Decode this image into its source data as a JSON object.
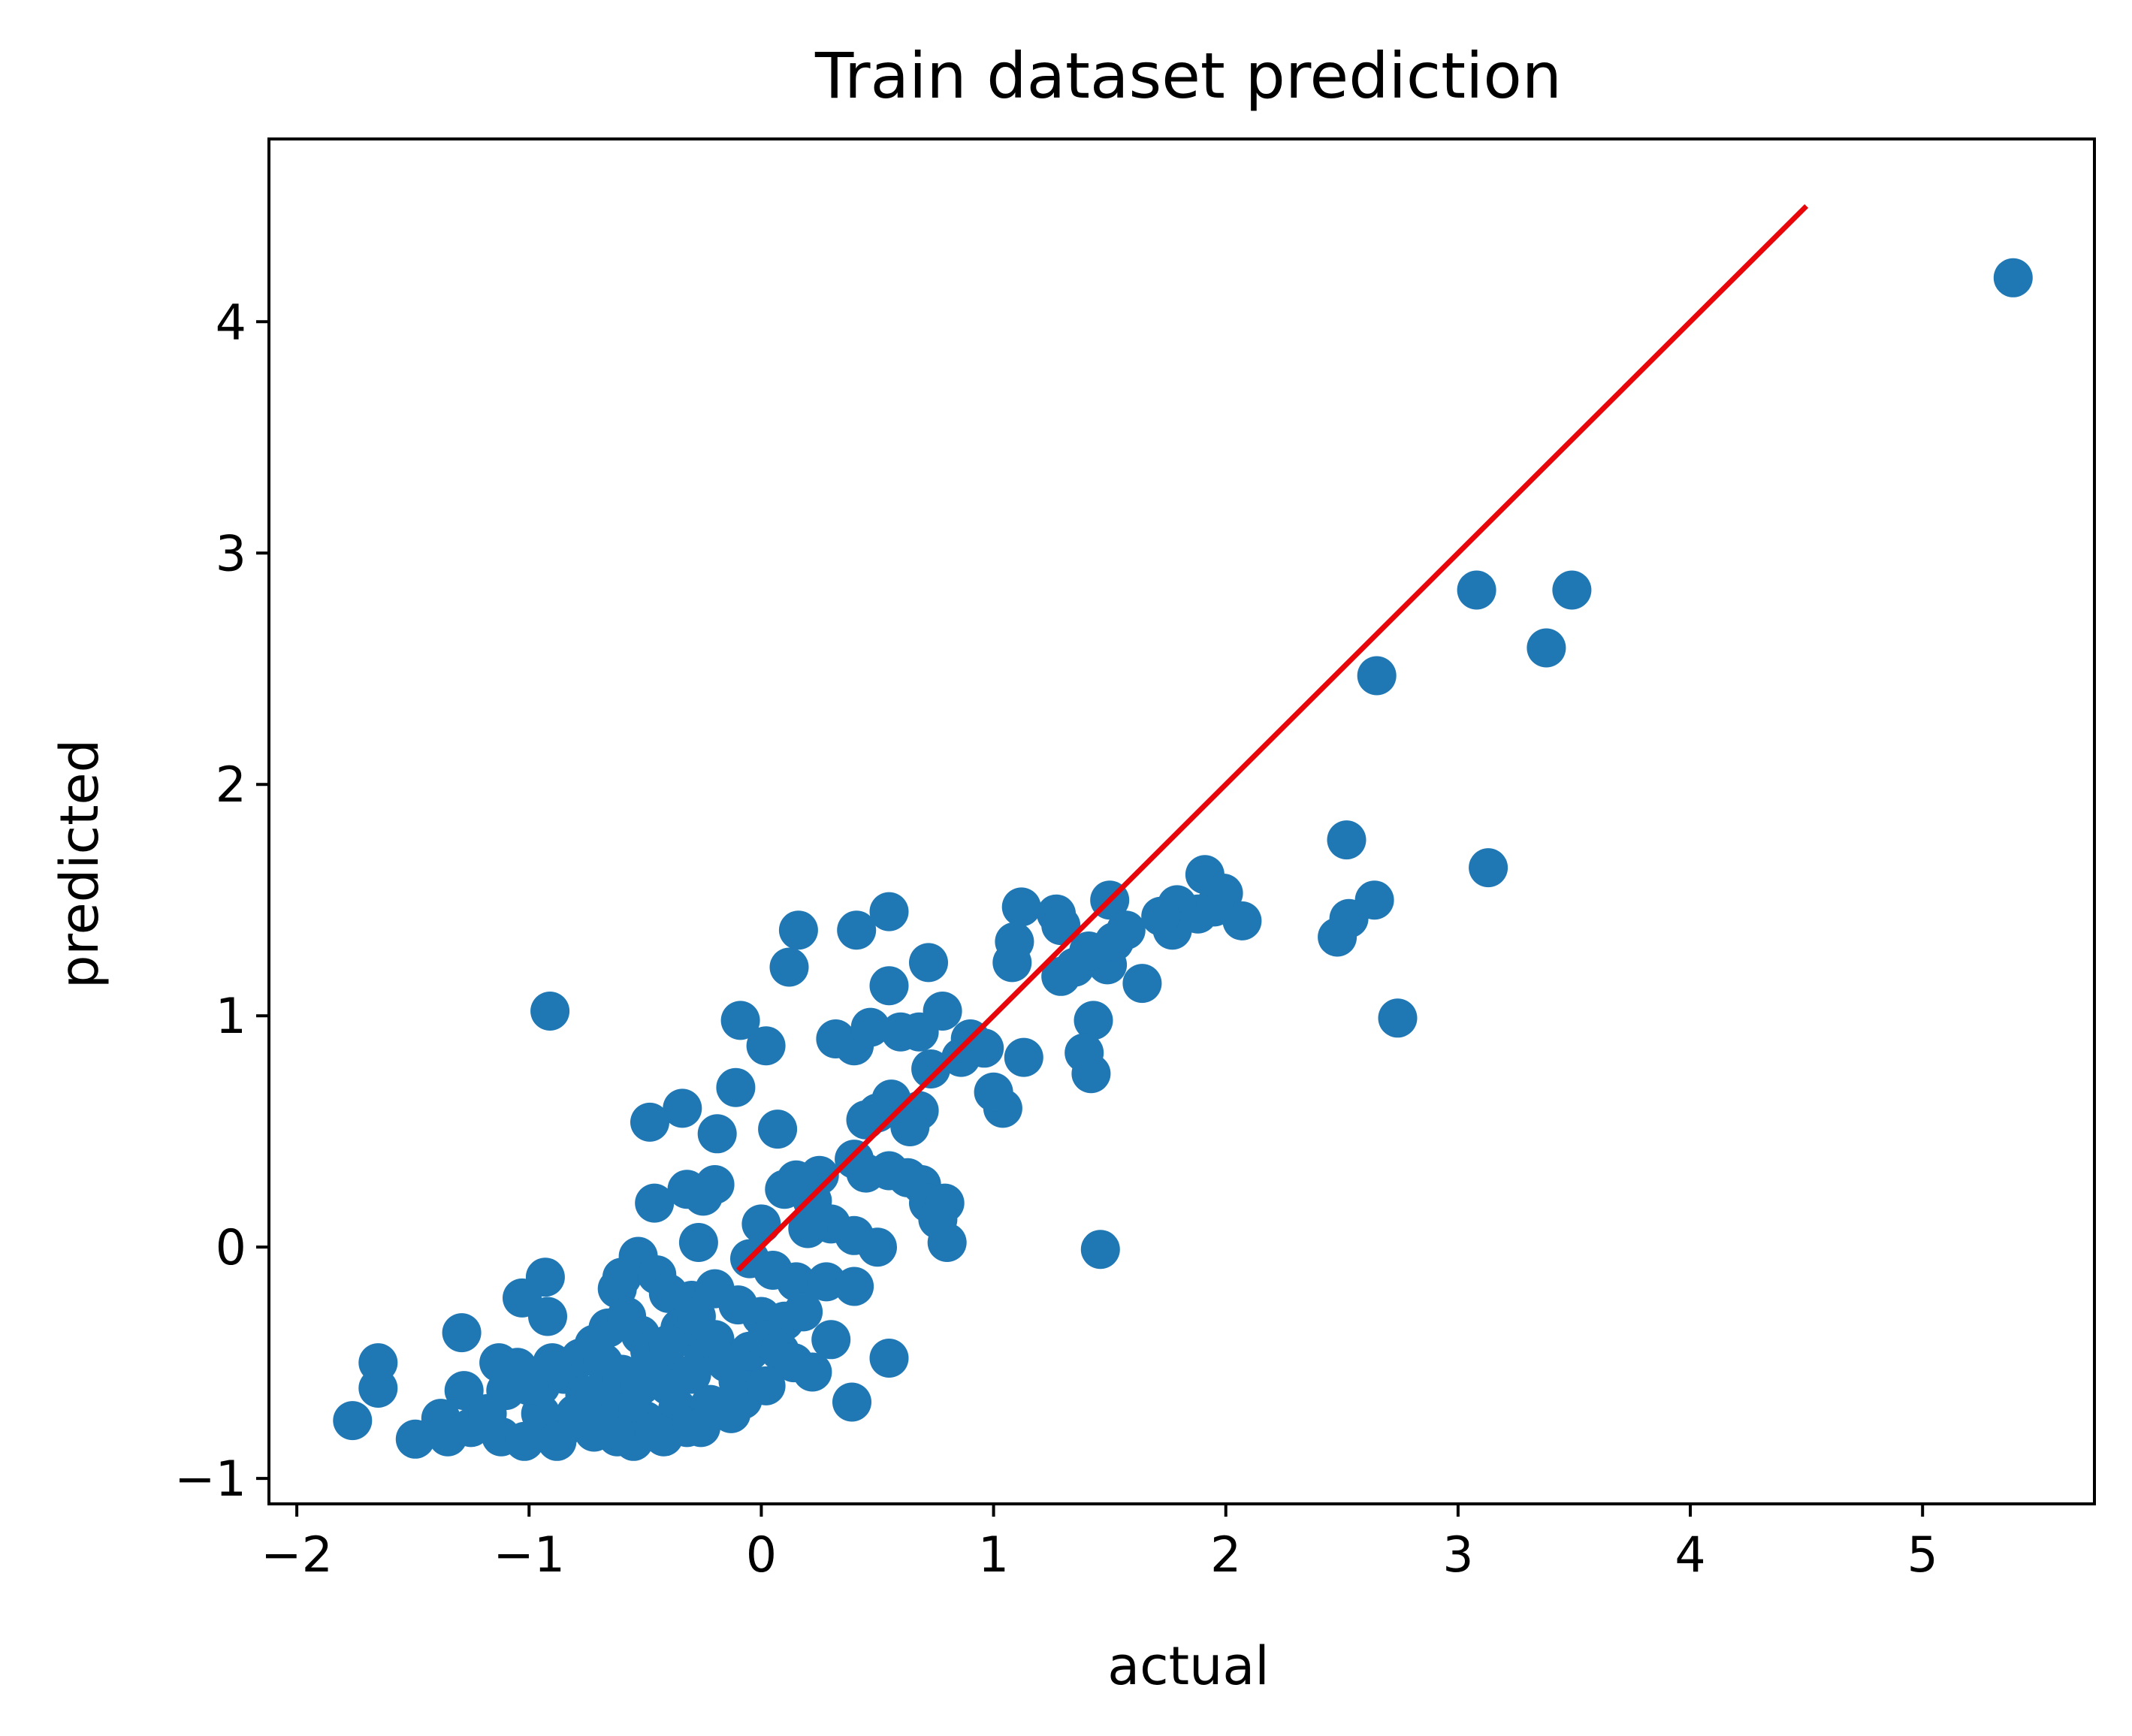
{
  "chart_data": {
    "type": "scatter",
    "title": "Train dataset prediction",
    "xlabel": "actual",
    "ylabel": "predicted",
    "xlim": [
      -2.12,
      5.74
    ],
    "ylim": [
      -1.11,
      4.79
    ],
    "xticks": [
      {
        "value": -2,
        "label": "−2"
      },
      {
        "value": -1,
        "label": "−1"
      },
      {
        "value": 0,
        "label": "0"
      },
      {
        "value": 1,
        "label": "1"
      },
      {
        "value": 2,
        "label": "2"
      },
      {
        "value": 3,
        "label": "3"
      },
      {
        "value": 4,
        "label": "4"
      },
      {
        "value": 5,
        "label": "5"
      }
    ],
    "yticks": [
      {
        "value": -1,
        "label": "−1"
      },
      {
        "value": 0,
        "label": "0"
      },
      {
        "value": 1,
        "label": "1"
      },
      {
        "value": 2,
        "label": "2"
      },
      {
        "value": 3,
        "label": "3"
      },
      {
        "value": 4,
        "label": "4"
      }
    ],
    "grid": false,
    "colors": {
      "points": "#1f77b4",
      "line": "#e8060a"
    },
    "reference_line": {
      "x": [
        -0.1,
        4.5
      ],
      "y": [
        -0.1,
        4.5
      ]
    },
    "series": [
      {
        "points": [
          [
            5.39,
            4.19
          ],
          [
            3.08,
            2.84
          ],
          [
            3.49,
            2.84
          ],
          [
            3.38,
            2.59
          ],
          [
            2.65,
            2.47
          ],
          [
            2.52,
            1.76
          ],
          [
            3.13,
            1.64
          ],
          [
            2.64,
            1.5
          ],
          [
            2.53,
            1.42
          ],
          [
            2.48,
            1.34
          ],
          [
            2.74,
            0.99
          ],
          [
            1.91,
            1.61
          ],
          [
            1.99,
            1.53
          ],
          [
            2.07,
            1.41
          ],
          [
            1.95,
            1.47
          ],
          [
            1.88,
            1.44
          ],
          [
            1.79,
            1.48
          ],
          [
            1.77,
            1.37
          ],
          [
            1.72,
            1.43
          ],
          [
            1.64,
            1.14
          ],
          [
            1.5,
            1.5
          ],
          [
            1.49,
            1.22
          ],
          [
            1.45,
            1.25
          ],
          [
            1.52,
            1.32
          ],
          [
            1.57,
            1.37
          ],
          [
            1.43,
            0.98
          ],
          [
            1.42,
            0.75
          ],
          [
            1.39,
            0.84
          ],
          [
            1.12,
            1.47
          ],
          [
            1.27,
            1.44
          ],
          [
            1.29,
            1.39
          ],
          [
            1.09,
            1.32
          ],
          [
            1.08,
            1.23
          ],
          [
            1.29,
            1.17
          ],
          [
            1.35,
            1.21
          ],
          [
            1.41,
            1.28
          ],
          [
            1.13,
            0.82
          ],
          [
            1.04,
            0.6
          ],
          [
            1.0,
            0.67
          ],
          [
            0.55,
            1.45
          ],
          [
            0.16,
            1.37
          ],
          [
            0.41,
            1.37
          ],
          [
            0.72,
            1.23
          ],
          [
            0.12,
            1.21
          ],
          [
            0.55,
            1.13
          ],
          [
            -0.09,
            0.98
          ],
          [
            0.02,
            0.87
          ],
          [
            -0.11,
            0.69
          ],
          [
            0.07,
            0.51
          ],
          [
            -0.19,
            0.49
          ],
          [
            0.32,
            0.9
          ],
          [
            0.4,
            0.87
          ],
          [
            0.47,
            0.95
          ],
          [
            0.6,
            0.93
          ],
          [
            0.68,
            0.93
          ],
          [
            0.78,
            1.02
          ],
          [
            0.9,
            0.9
          ],
          [
            0.86,
            0.82
          ],
          [
            0.96,
            0.86
          ],
          [
            0.73,
            0.77
          ],
          [
            0.56,
            0.64
          ],
          [
            0.5,
            0.58
          ],
          [
            0.68,
            0.59
          ],
          [
            0.64,
            0.52
          ],
          [
            0.45,
            0.55
          ],
          [
            -0.34,
            0.6
          ],
          [
            -0.48,
            0.54
          ],
          [
            -0.91,
            1.02
          ],
          [
            -0.46,
            0.19
          ],
          [
            -0.32,
            0.25
          ],
          [
            -0.2,
            0.27
          ],
          [
            -0.25,
            0.22
          ],
          [
            -0.27,
            0.02
          ],
          [
            0.1,
            0.25
          ],
          [
            0.15,
            0.29
          ],
          [
            0.25,
            0.31
          ],
          [
            0.22,
            0.2
          ],
          [
            0.4,
            0.38
          ],
          [
            0.45,
            0.32
          ],
          [
            0.55,
            0.33
          ],
          [
            0.63,
            0.3
          ],
          [
            0.69,
            0.27
          ],
          [
            0.72,
            0.19
          ],
          [
            0.79,
            0.19
          ],
          [
            0.76,
            0.12
          ],
          [
            0.8,
            0.02
          ],
          [
            0.5,
            0.0
          ],
          [
            0.4,
            0.05
          ],
          [
            0.3,
            0.1
          ],
          [
            0.2,
            0.08
          ],
          [
            0.0,
            0.1
          ],
          [
            -0.05,
            -0.05
          ],
          [
            0.05,
            -0.1
          ],
          [
            0.15,
            -0.15
          ],
          [
            0.28,
            -0.15
          ],
          [
            0.4,
            -0.17
          ],
          [
            1.46,
            -0.01
          ],
          [
            -0.53,
            -0.04
          ],
          [
            -0.62,
            -0.18
          ],
          [
            -0.6,
            -0.13
          ],
          [
            -0.45,
            -0.12
          ],
          [
            -0.4,
            -0.2
          ],
          [
            -0.3,
            -0.23
          ],
          [
            -0.2,
            -0.18
          ],
          [
            -0.1,
            -0.25
          ],
          [
            0.0,
            -0.3
          ],
          [
            0.1,
            -0.32
          ],
          [
            0.18,
            -0.28
          ],
          [
            0.3,
            -0.4
          ],
          [
            0.55,
            -0.48
          ],
          [
            0.39,
            -0.67
          ],
          [
            -0.93,
            -0.13
          ],
          [
            -1.03,
            -0.22
          ],
          [
            -0.92,
            -0.3
          ],
          [
            -1.29,
            -0.37
          ],
          [
            -1.65,
            -0.5
          ],
          [
            -1.65,
            -0.61
          ],
          [
            -1.76,
            -0.75
          ],
          [
            -1.49,
            -0.83
          ],
          [
            -1.38,
            -0.74
          ],
          [
            -1.35,
            -0.82
          ],
          [
            -1.25,
            -0.78
          ],
          [
            -1.28,
            -0.62
          ],
          [
            -1.13,
            -0.5
          ],
          [
            -1.05,
            -0.52
          ],
          [
            -1.1,
            -0.62
          ],
          [
            -1.18,
            -0.72
          ],
          [
            -1.12,
            -0.82
          ],
          [
            -1.02,
            -0.84
          ],
          [
            -0.95,
            -0.72
          ],
          [
            -0.85,
            -0.78
          ],
          [
            -0.88,
            -0.84
          ],
          [
            -0.95,
            -0.6
          ],
          [
            -0.85,
            -0.55
          ],
          [
            -0.78,
            -0.48
          ],
          [
            -0.72,
            -0.42
          ],
          [
            -0.66,
            -0.35
          ],
          [
            -0.58,
            -0.3
          ],
          [
            -0.52,
            -0.38
          ],
          [
            -0.48,
            -0.45
          ],
          [
            -0.44,
            -0.52
          ],
          [
            -0.4,
            -0.6
          ],
          [
            -0.36,
            -0.7
          ],
          [
            -0.32,
            -0.78
          ],
          [
            -0.42,
            -0.82
          ],
          [
            -0.5,
            -0.75
          ],
          [
            -0.58,
            -0.68
          ],
          [
            -0.64,
            -0.6
          ],
          [
            -0.7,
            -0.7
          ],
          [
            -0.76,
            -0.64
          ],
          [
            -0.8,
            -0.72
          ],
          [
            -0.72,
            -0.8
          ],
          [
            -0.62,
            -0.82
          ],
          [
            -0.55,
            -0.84
          ],
          [
            -0.46,
            -0.8
          ],
          [
            -0.3,
            -0.55
          ],
          [
            -0.25,
            -0.45
          ],
          [
            -0.2,
            -0.4
          ],
          [
            -0.15,
            -0.5
          ],
          [
            -0.1,
            -0.58
          ],
          [
            -0.05,
            -0.45
          ],
          [
            0.02,
            -0.4
          ],
          [
            0.08,
            -0.45
          ],
          [
            0.14,
            -0.5
          ],
          [
            0.22,
            -0.54
          ],
          [
            -0.13,
            -0.72
          ],
          [
            -0.08,
            -0.66
          ],
          [
            0.02,
            -0.6
          ],
          [
            -0.22,
            -0.68
          ],
          [
            -0.26,
            -0.78
          ],
          [
            -0.68,
            -0.5
          ],
          [
            -0.6,
            -0.55
          ],
          [
            -0.52,
            -0.6
          ],
          [
            -0.9,
            -0.5
          ],
          [
            -1.0,
            -0.6
          ],
          [
            -0.35,
            -0.35
          ],
          [
            -0.28,
            -0.3
          ],
          [
            -0.4,
            -0.42
          ]
        ]
      }
    ]
  }
}
